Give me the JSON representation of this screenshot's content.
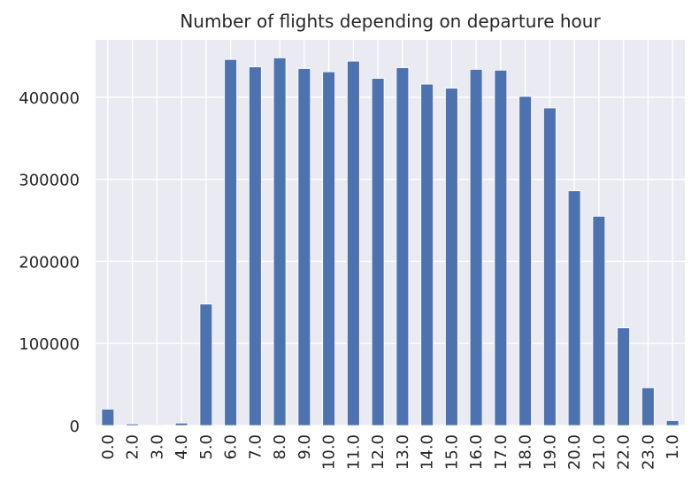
{
  "chart_data": {
    "type": "bar",
    "title": "Number of flights depending on departure hour",
    "xlabel": "",
    "ylabel": "",
    "categories": [
      "0.0",
      "2.0",
      "3.0",
      "4.0",
      "5.0",
      "6.0",
      "7.0",
      "8.0",
      "9.0",
      "10.0",
      "11.0",
      "12.0",
      "13.0",
      "14.0",
      "15.0",
      "16.0",
      "17.0",
      "18.0",
      "19.0",
      "20.0",
      "21.0",
      "22.0",
      "23.0",
      "1.0"
    ],
    "values": [
      20000,
      2000,
      1000,
      3000,
      148000,
      446000,
      437000,
      448000,
      435000,
      431000,
      444000,
      423000,
      436000,
      416000,
      411000,
      434000,
      433000,
      401000,
      387000,
      286000,
      255000,
      119000,
      46000,
      6000
    ],
    "ylim": [
      0,
      470000
    ],
    "yticks": [
      0,
      100000,
      200000,
      300000,
      400000
    ],
    "ytick_labels": [
      "0",
      "100000",
      "200000",
      "300000",
      "400000"
    ],
    "grid": true,
    "colors": {
      "background": "#EAEAF2",
      "bar": "#4C72B0",
      "grid": "#FFFFFF",
      "text": "#262626"
    }
  }
}
